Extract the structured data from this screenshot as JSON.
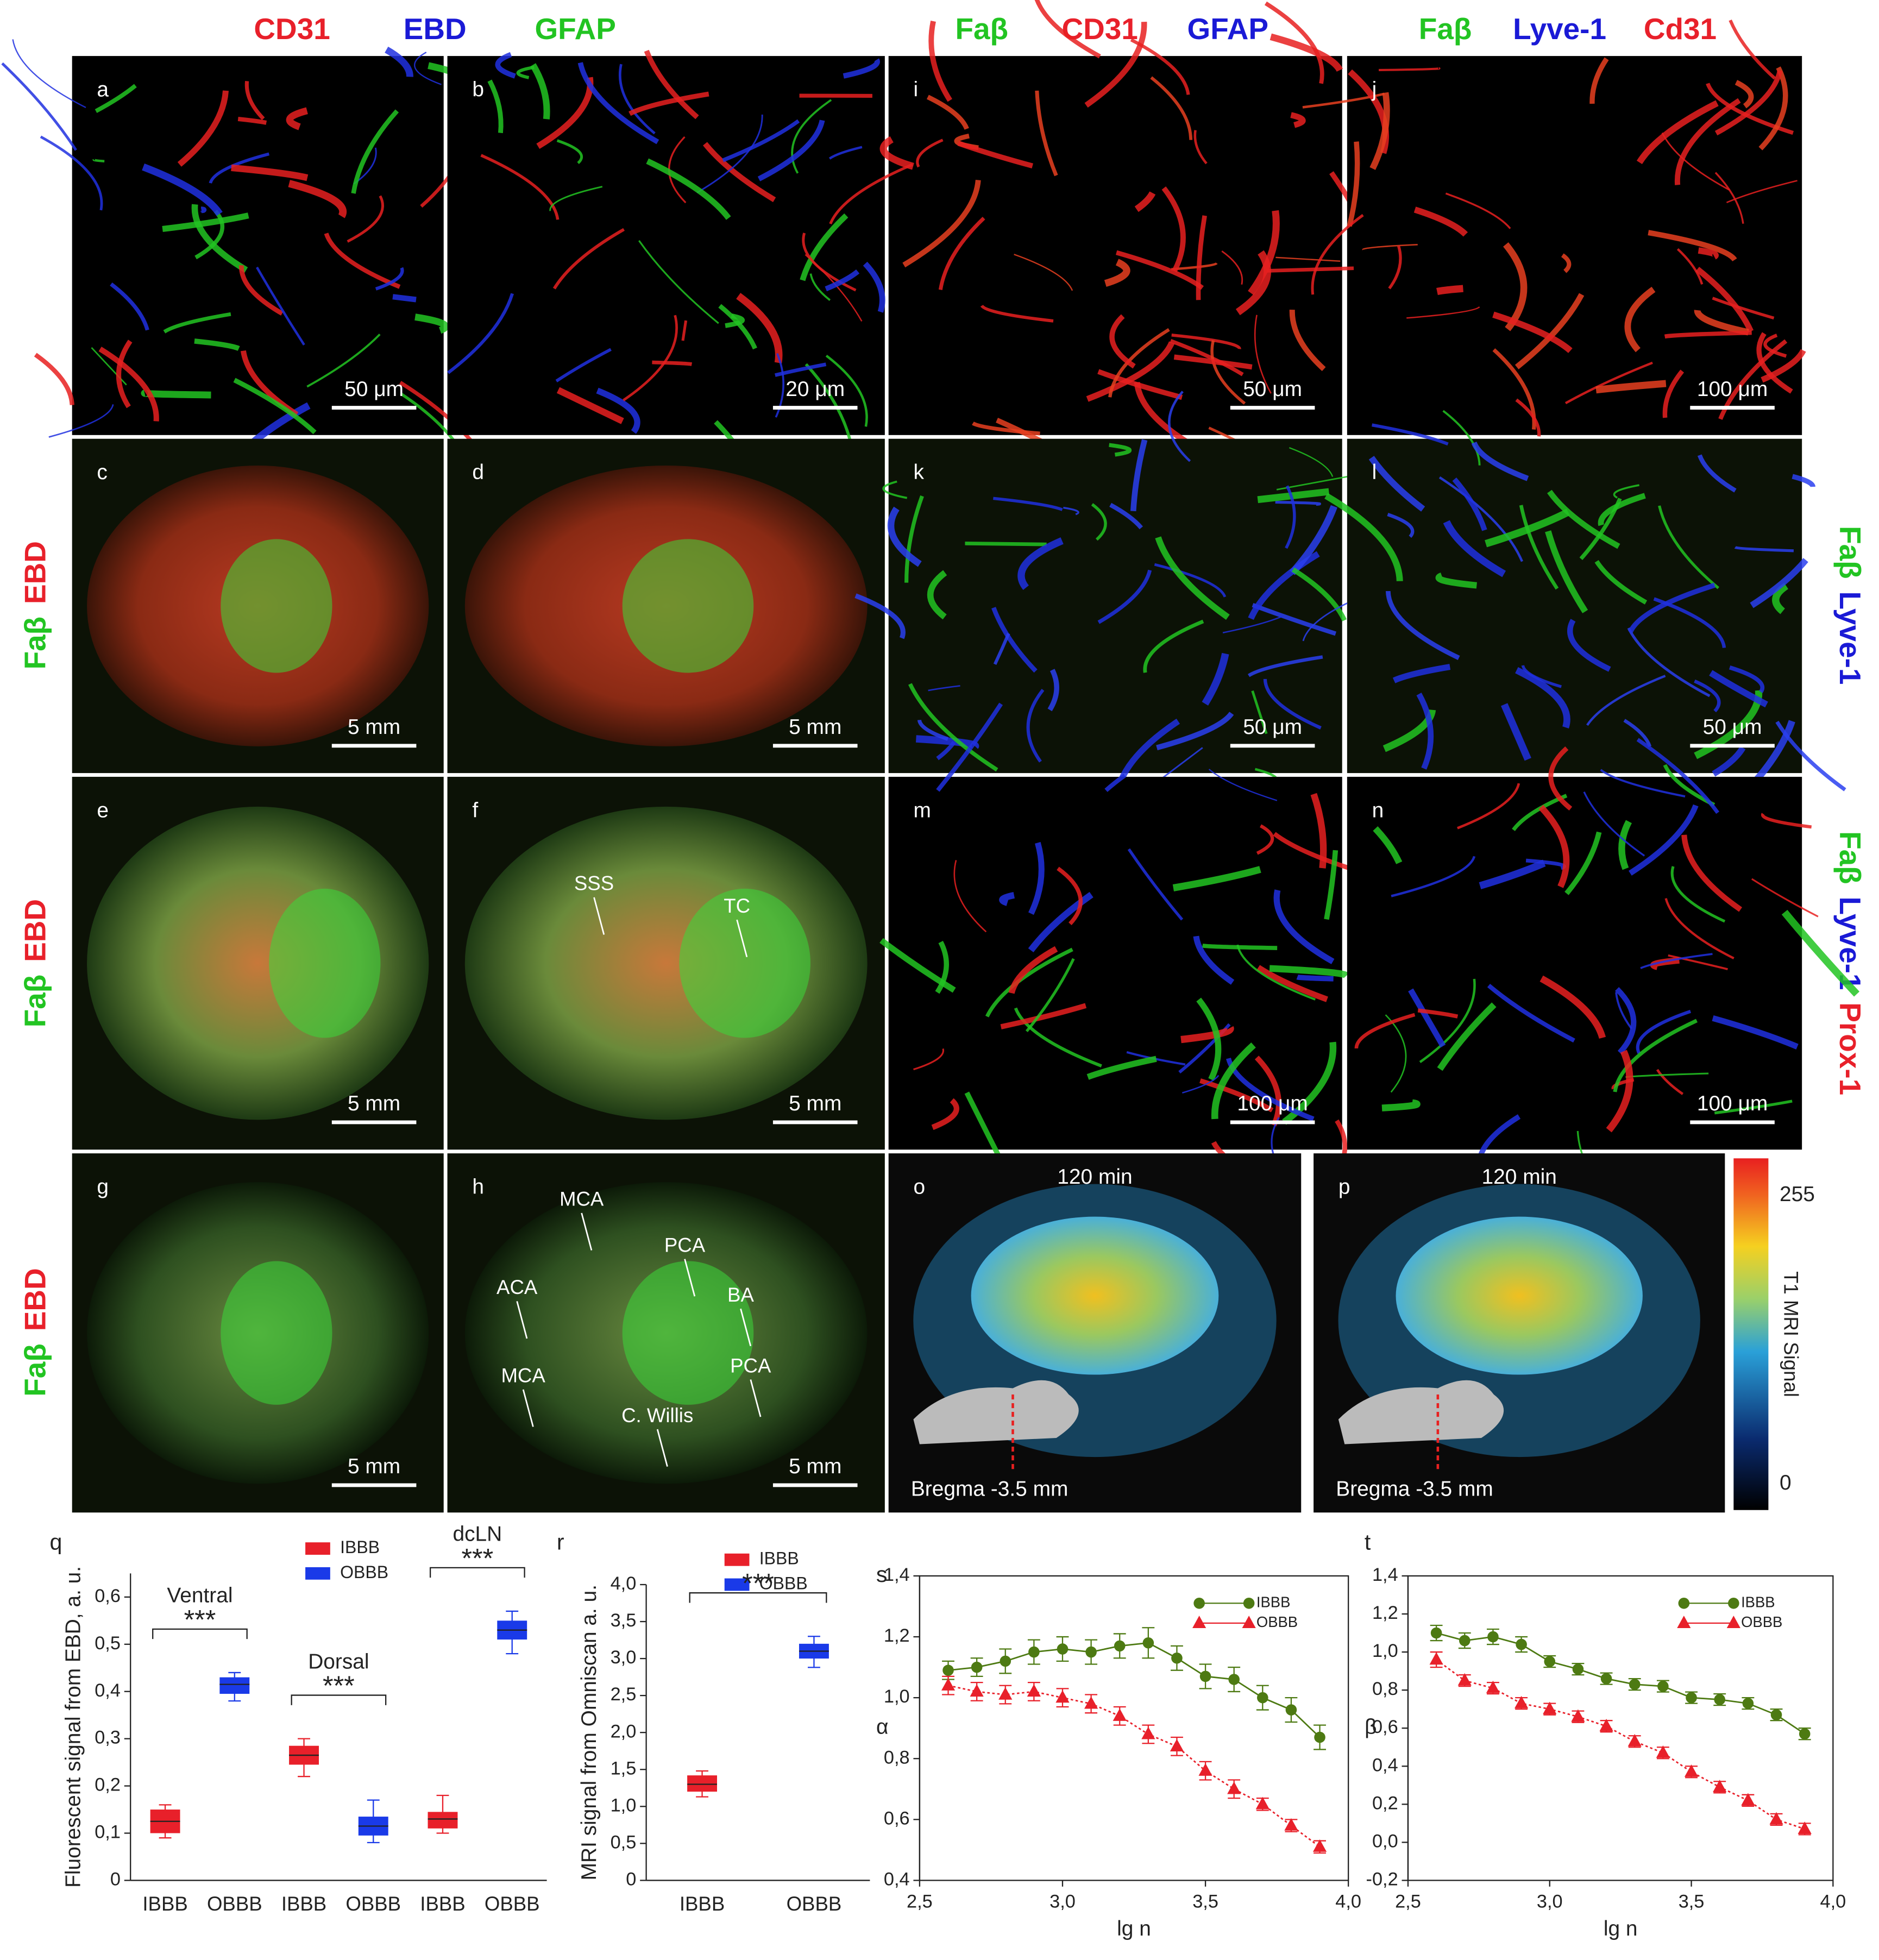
{
  "headers": [
    [
      {
        "text": "CD31",
        "color": "#e8202a"
      },
      {
        "text": "EBD",
        "color": "#1a1ad6"
      },
      {
        "text": "GFAP",
        "color": "#22c422"
      }
    ],
    [
      {
        "text": "Faβ",
        "color": "#22c422"
      },
      {
        "text": "CD31",
        "color": "#e8202a"
      },
      {
        "text": "GFAP",
        "color": "#1a1ad6"
      }
    ],
    [
      {
        "text": "Faβ",
        "color": "#22c422"
      },
      {
        "text": "Lyve-1",
        "color": "#1a1ad6"
      },
      {
        "text": "Cd31",
        "color": "#e8202a"
      }
    ]
  ],
  "left_labels": [
    [
      {
        "text": "Faβ",
        "color": "#22c422"
      },
      {
        "text": "EBD",
        "color": "#e8202a"
      }
    ],
    [
      {
        "text": "Faβ",
        "color": "#22c422"
      },
      {
        "text": "EBD",
        "color": "#e8202a"
      }
    ],
    [
      {
        "text": "Faβ",
        "color": "#22c422"
      },
      {
        "text": "EBD",
        "color": "#e8202a"
      }
    ]
  ],
  "right_labels": [
    [
      {
        "text": "Faβ",
        "color": "#22c422"
      },
      {
        "text": "Lyve-1",
        "color": "#1a1ad6"
      }
    ],
    [
      {
        "text": "Faβ",
        "color": "#22c422"
      },
      {
        "text": "Lyve-1",
        "color": "#1a1ad6"
      },
      {
        "text": "Prox-1",
        "color": "#e8202a"
      }
    ]
  ],
  "panels": [
    {
      "label": "a",
      "scale": "50 μm"
    },
    {
      "label": "b",
      "scale": "20 μm"
    },
    {
      "label": "i",
      "scale": "50 μm"
    },
    {
      "label": "j",
      "scale": "100 μm"
    },
    {
      "label": "c",
      "scale": "5 mm"
    },
    {
      "label": "d",
      "scale": "5 mm"
    },
    {
      "label": "k",
      "scale": "50 μm"
    },
    {
      "label": "l",
      "scale": "50 μm"
    },
    {
      "label": "e",
      "scale": "5 mm"
    },
    {
      "label": "f",
      "scale": "5 mm",
      "annotations": [
        "SSS",
        "TC"
      ]
    },
    {
      "label": "m",
      "scale": "100 μm"
    },
    {
      "label": "n",
      "scale": "100 μm"
    },
    {
      "label": "g",
      "scale": "5 mm"
    },
    {
      "label": "h",
      "scale": "5 mm",
      "annotations": [
        "MCA",
        "PCA",
        "ACA",
        "BA",
        "MCA",
        "C. Willis",
        "PCA"
      ]
    },
    {
      "label": "o",
      "time": "120 min",
      "bregma": "Bregma -3.5 mm"
    },
    {
      "label": "p",
      "time": "120 min",
      "bregma": "Bregma -3.5 mm"
    }
  ],
  "colorbar": {
    "label": "T1 MRI Signal",
    "lim": [
      -23,
      288
    ],
    "ticks": [
      0,
      255
    ]
  },
  "chart_data": [
    {
      "type": "box",
      "label": "q",
      "ylabel": "Fluorescent signal from EBD, a. u.",
      "ylim": [
        0,
        0.65
      ],
      "yticks": [
        0,
        {
          "value": 0.1,
          "label": "0,1"
        },
        {
          "value": 0.2,
          "label": "0,2"
        },
        {
          "value": 0.3,
          "label": "0,3"
        },
        {
          "value": 0.4,
          "label": "0,4"
        },
        {
          "value": 0.5,
          "label": "0,5"
        },
        {
          "value": 0.6,
          "label": "0,6"
        }
      ],
      "groups": [
        {
          "label": "Ventral",
          "significance": "***"
        },
        {
          "label": "Dorsal",
          "significance": "***"
        },
        {
          "label": "dcLN",
          "significance": "***"
        }
      ],
      "series": [
        {
          "name": "IBBB",
          "color": "#e8202a",
          "boxes": [
            {
              "min": 0.09,
              "q1": 0.1,
              "median": 0.125,
              "q3": 0.15,
              "max": 0.16
            },
            {
              "min": 0.22,
              "q1": 0.245,
              "median": 0.265,
              "q3": 0.285,
              "max": 0.3
            },
            {
              "min": 0.1,
              "q1": 0.11,
              "median": 0.13,
              "q3": 0.145,
              "max": 0.18
            }
          ]
        },
        {
          "name": "OBBB",
          "color": "#1a3ae8",
          "boxes": [
            {
              "min": 0.38,
              "q1": 0.395,
              "median": 0.415,
              "q3": 0.43,
              "max": 0.44
            },
            {
              "min": 0.08,
              "q1": 0.095,
              "median": 0.115,
              "q3": 0.135,
              "max": 0.17
            },
            {
              "min": 0.48,
              "q1": 0.51,
              "median": 0.53,
              "q3": 0.55,
              "max": 0.57
            }
          ]
        }
      ]
    },
    {
      "type": "box",
      "label": "r",
      "ylabel": "MRI signal from Omniscan a. u.",
      "ylim": [
        0,
        4
      ],
      "yticks": [
        0,
        {
          "value": 0.5,
          "label": "0,5"
        },
        {
          "value": 1,
          "label": "1,0"
        },
        {
          "value": 1.5,
          "label": "1,5"
        },
        {
          "value": 2,
          "label": "2,0"
        },
        {
          "value": 2.5,
          "label": "2,5"
        },
        {
          "value": 3,
          "label": "3,0"
        },
        {
          "value": 3.5,
          "label": "3,5"
        },
        {
          "value": 4,
          "label": "4,0"
        }
      ],
      "significance": "***",
      "series": [
        {
          "name": "IBBB",
          "color": "#e8202a",
          "boxes": [
            {
              "min": 1.13,
              "q1": 1.2,
              "median": 1.3,
              "q3": 1.42,
              "max": 1.48
            }
          ]
        },
        {
          "name": "OBBB",
          "color": "#1a3ae8",
          "boxes": [
            {
              "min": 2.88,
              "q1": 3.0,
              "median": 3.1,
              "q3": 3.2,
              "max": 3.3
            }
          ]
        }
      ]
    },
    {
      "type": "line",
      "label": "s",
      "xlabel": "lg n",
      "ylabel": "α",
      "x": [
        2.6,
        2.7,
        2.8,
        2.9,
        3.0,
        3.1,
        3.2,
        3.3,
        3.4,
        3.5,
        3.6,
        3.7,
        3.8,
        3.9
      ],
      "xlim": [
        2.5,
        4.0
      ],
      "xticks": [
        {
          "value": 2.5,
          "label": "2,5"
        },
        {
          "value": 3,
          "label": "3,0"
        },
        {
          "value": 3.5,
          "label": "3,5"
        },
        {
          "value": 4,
          "label": "4,0"
        }
      ],
      "ylim": [
        0.4,
        1.4
      ],
      "yticks": [
        {
          "value": 0.4,
          "label": "0,4"
        },
        {
          "value": 0.6,
          "label": "0,6"
        },
        {
          "value": 0.8,
          "label": "0,8"
        },
        {
          "value": 1,
          "label": "1,0"
        },
        {
          "value": 1.2,
          "label": "1,2"
        },
        {
          "value": 1.4,
          "label": "1,4"
        }
      ],
      "series": [
        {
          "name": "IBBB",
          "color": "#4d7a12",
          "marker": "circle",
          "values": [
            1.09,
            1.1,
            1.12,
            1.15,
            1.16,
            1.15,
            1.17,
            1.18,
            1.13,
            1.07,
            1.06,
            1.0,
            0.96,
            0.87
          ],
          "errors": [
            0.03,
            0.03,
            0.04,
            0.04,
            0.04,
            0.04,
            0.04,
            0.05,
            0.04,
            0.04,
            0.04,
            0.04,
            0.04,
            0.04
          ]
        },
        {
          "name": "OBBB",
          "color": "#e8202a",
          "marker": "triangle",
          "values": [
            1.04,
            1.02,
            1.01,
            1.02,
            1.0,
            0.98,
            0.94,
            0.88,
            0.84,
            0.76,
            0.7,
            0.65,
            0.58,
            0.51
          ],
          "errors": [
            0.03,
            0.03,
            0.03,
            0.03,
            0.03,
            0.03,
            0.03,
            0.03,
            0.03,
            0.03,
            0.03,
            0.02,
            0.02,
            0.02
          ]
        }
      ]
    },
    {
      "type": "line",
      "label": "t",
      "xlabel": "lg n",
      "ylabel": "β",
      "x": [
        2.6,
        2.7,
        2.8,
        2.9,
        3.0,
        3.1,
        3.2,
        3.3,
        3.4,
        3.5,
        3.6,
        3.7,
        3.8,
        3.9
      ],
      "xlim": [
        2.5,
        4.0
      ],
      "xticks": [
        {
          "value": 2.5,
          "label": "2,5"
        },
        {
          "value": 3,
          "label": "3,0"
        },
        {
          "value": 3.5,
          "label": "3,5"
        },
        {
          "value": 4,
          "label": "4,0"
        }
      ],
      "ylim": [
        -0.2,
        1.4
      ],
      "yticks": [
        {
          "value": -0.2,
          "label": "-0,2"
        },
        {
          "value": 0,
          "label": "0,0"
        },
        {
          "value": 0.2,
          "label": "0,2"
        },
        {
          "value": 0.4,
          "label": "0,4"
        },
        {
          "value": 0.6,
          "label": "0,6"
        },
        {
          "value": 0.8,
          "label": "0,8"
        },
        {
          "value": 1,
          "label": "1,0"
        },
        {
          "value": 1.2,
          "label": "1,2"
        },
        {
          "value": 1.4,
          "label": "1,4"
        }
      ],
      "series": [
        {
          "name": "IBBB",
          "color": "#4d7a12",
          "marker": "circle",
          "values": [
            1.1,
            1.06,
            1.08,
            1.04,
            0.95,
            0.91,
            0.86,
            0.83,
            0.82,
            0.76,
            0.75,
            0.73,
            0.67,
            0.57
          ],
          "errors": [
            0.04,
            0.04,
            0.04,
            0.04,
            0.03,
            0.03,
            0.03,
            0.03,
            0.03,
            0.03,
            0.03,
            0.03,
            0.03,
            0.03
          ]
        },
        {
          "name": "OBBB",
          "color": "#e8202a",
          "marker": "triangle",
          "values": [
            0.96,
            0.85,
            0.81,
            0.73,
            0.7,
            0.66,
            0.61,
            0.53,
            0.47,
            0.37,
            0.29,
            0.22,
            0.12,
            0.07
          ],
          "errors": [
            0.04,
            0.03,
            0.03,
            0.03,
            0.03,
            0.03,
            0.03,
            0.03,
            0.03,
            0.03,
            0.03,
            0.03,
            0.03,
            0.03
          ]
        }
      ]
    }
  ]
}
